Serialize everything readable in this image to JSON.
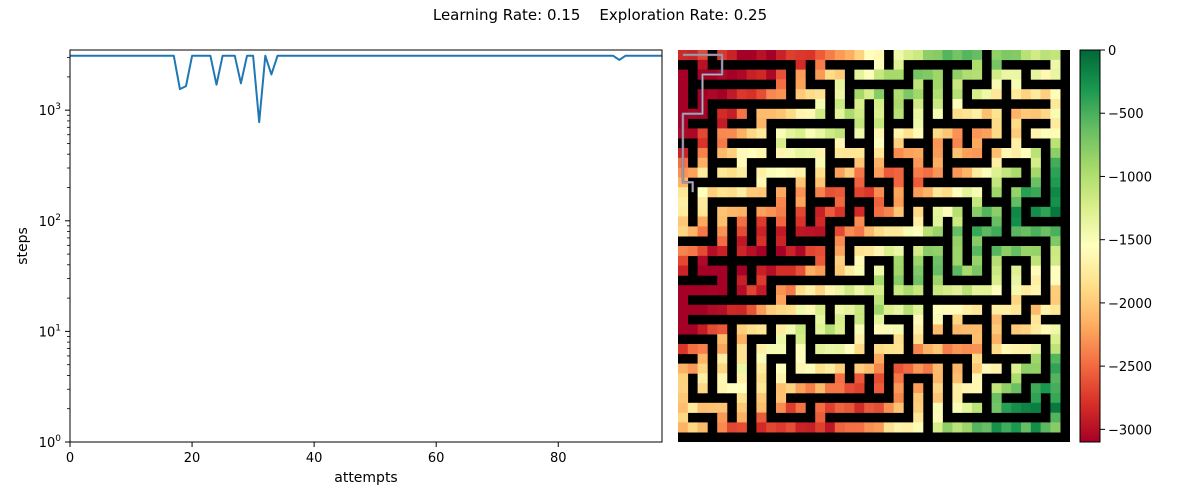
{
  "figure": {
    "title": "Learning Rate: 0.15    Exploration Rate: 0.25"
  },
  "chart_data": [
    {
      "type": "line",
      "xlabel": "attempts",
      "ylabel": "steps",
      "yscale": "log",
      "xlim": [
        0,
        97
      ],
      "ylim": [
        1,
        3500
      ],
      "xticks": [
        0,
        20,
        40,
        60,
        80
      ],
      "yticks": [
        {
          "value": 1,
          "base": "10",
          "exp": "0"
        },
        {
          "value": 10,
          "base": "10",
          "exp": "1"
        },
        {
          "value": 100,
          "base": "10",
          "exp": "2"
        },
        {
          "value": 1000,
          "base": "10",
          "exp": "3"
        }
      ],
      "color": "#1f77b4",
      "series": [
        {
          "x": [
            0,
            1,
            2,
            3,
            4,
            5,
            6,
            7,
            8,
            9,
            10,
            11,
            12,
            13,
            14,
            15,
            16,
            17,
            18,
            19,
            20,
            21,
            22,
            23,
            24,
            25,
            26,
            27,
            28,
            29,
            30,
            31,
            32,
            33,
            34,
            35,
            36,
            37,
            38,
            39,
            40,
            41,
            42,
            43,
            44,
            45,
            46,
            47,
            48,
            49,
            50,
            51,
            52,
            53,
            54,
            55,
            56,
            57,
            58,
            59,
            60,
            61,
            62,
            63,
            64,
            65,
            66,
            67,
            68,
            69,
            70,
            71,
            72,
            73,
            74,
            75,
            76,
            77,
            78,
            79,
            80,
            81,
            82,
            83,
            84,
            85,
            86,
            87,
            88,
            89,
            90,
            91,
            92,
            93,
            94,
            95,
            96,
            97
          ],
          "y": [
            3100,
            3100,
            3100,
            3100,
            3100,
            3100,
            3100,
            3100,
            3100,
            3100,
            3100,
            3100,
            3100,
            3100,
            3100,
            3100,
            3100,
            3100,
            1550,
            1650,
            3100,
            3100,
            3100,
            3100,
            1700,
            3100,
            3100,
            3100,
            1750,
            3100,
            3100,
            780,
            3100,
            2100,
            3100,
            3100,
            3100,
            3100,
            3100,
            3100,
            3100,
            3100,
            3100,
            3100,
            3100,
            3100,
            3100,
            3100,
            3100,
            3100,
            3100,
            3100,
            3100,
            3100,
            3100,
            3100,
            3100,
            3100,
            3100,
            3100,
            3100,
            3100,
            3100,
            3100,
            3100,
            3100,
            3100,
            3100,
            3100,
            3100,
            3100,
            3100,
            3100,
            3100,
            3100,
            3100,
            3100,
            3100,
            3100,
            3100,
            3100,
            3100,
            3100,
            3100,
            3100,
            3100,
            3100,
            3100,
            3100,
            3100,
            2850,
            3100,
            3100,
            3100,
            3100,
            3100,
            3100,
            3100
          ]
        }
      ]
    },
    {
      "type": "heatmap",
      "grid": [
        40,
        40
      ],
      "value_range": [
        -3100,
        0
      ],
      "wall_color": "#000000",
      "colormap": "RdYlGn",
      "path_color": "#5b9bd5",
      "colorbar": {
        "ticks": [
          "0",
          "−500",
          "−1000",
          "−1500",
          "−2000",
          "−2500",
          "−3000"
        ],
        "tick_values": [
          0,
          -500,
          -1000,
          -1500,
          -2000,
          -2500,
          -3000
        ]
      }
    }
  ]
}
